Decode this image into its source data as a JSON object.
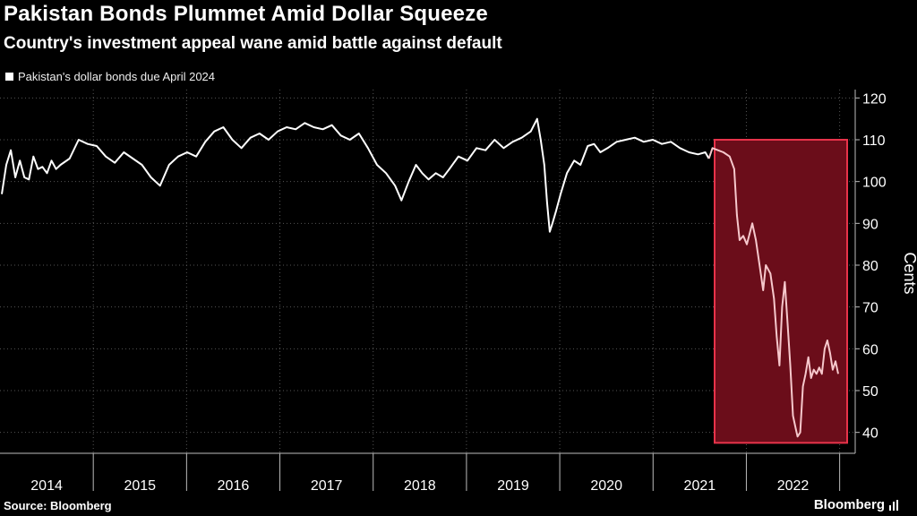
{
  "header": {
    "title": "Pakistan Bonds Plummet Amid Dollar Squeeze",
    "subtitle": "Country's investment appeal wane amid battle against default"
  },
  "footer": {
    "source": "Source: Bloomberg",
    "brand": "Bloomberg"
  },
  "chart_data": {
    "type": "line",
    "title": "Pakistan Bonds Plummet Amid Dollar Squeeze",
    "subtitle": "Country's investment appeal wane amid battle against default",
    "legend": "Pakistan's dollar bonds due April 2024",
    "legend_position": "top-left",
    "ylabel": "Cents",
    "xlabel": "",
    "ylim": [
      35,
      122
    ],
    "yticks": [
      40,
      50,
      60,
      70,
      80,
      90,
      100,
      110,
      120
    ],
    "xlim": [
      2014.0,
      2022.85
    ],
    "years": [
      "2014",
      "2015",
      "2016",
      "2017",
      "2018",
      "2019",
      "2020",
      "2021",
      "2022"
    ],
    "grid": "horizontal and vertical dotted",
    "highlight": {
      "x_start": 2021.82,
      "x_end": 2023.2,
      "y_low": 37.5,
      "y_high": 110,
      "color": "#e8334a"
    },
    "colors": {
      "line": "#ffffff",
      "highlight_line": "#f6c8cc",
      "highlight_fill": "#6b0d1a",
      "highlight_border": "#e8334a"
    },
    "series": [
      {
        "name": "Pakistan's dollar bonds due April 2024",
        "points": [
          [
            2014.0,
            97
          ],
          [
            2014.05,
            104
          ],
          [
            2014.1,
            107.5
          ],
          [
            2014.15,
            101
          ],
          [
            2014.2,
            105
          ],
          [
            2014.25,
            101
          ],
          [
            2014.3,
            100.5
          ],
          [
            2014.35,
            106
          ],
          [
            2014.4,
            103
          ],
          [
            2014.45,
            103.5
          ],
          [
            2014.5,
            102
          ],
          [
            2014.55,
            105
          ],
          [
            2014.6,
            103
          ],
          [
            2014.65,
            104
          ],
          [
            2014.75,
            105.5
          ],
          [
            2014.85,
            110
          ],
          [
            2014.95,
            109
          ],
          [
            2015.05,
            108.5
          ],
          [
            2015.15,
            106
          ],
          [
            2015.25,
            104.5
          ],
          [
            2015.35,
            107
          ],
          [
            2015.45,
            105.5
          ],
          [
            2015.55,
            104
          ],
          [
            2015.65,
            101
          ],
          [
            2015.75,
            99
          ],
          [
            2015.85,
            104
          ],
          [
            2015.95,
            106
          ],
          [
            2016.05,
            107
          ],
          [
            2016.15,
            106
          ],
          [
            2016.25,
            109.5
          ],
          [
            2016.35,
            112
          ],
          [
            2016.45,
            113
          ],
          [
            2016.55,
            110
          ],
          [
            2016.65,
            108
          ],
          [
            2016.75,
            110.5
          ],
          [
            2016.85,
            111.5
          ],
          [
            2016.95,
            110
          ],
          [
            2017.05,
            112
          ],
          [
            2017.15,
            113
          ],
          [
            2017.25,
            112.5
          ],
          [
            2017.35,
            114
          ],
          [
            2017.45,
            113
          ],
          [
            2017.55,
            112.5
          ],
          [
            2017.65,
            113.5
          ],
          [
            2017.75,
            111
          ],
          [
            2017.85,
            110
          ],
          [
            2017.95,
            111.5
          ],
          [
            2018.05,
            108
          ],
          [
            2018.15,
            104
          ],
          [
            2018.25,
            102
          ],
          [
            2018.35,
            99
          ],
          [
            2018.42,
            95.5
          ],
          [
            2018.5,
            100
          ],
          [
            2018.58,
            104
          ],
          [
            2018.65,
            102
          ],
          [
            2018.72,
            100.5
          ],
          [
            2018.8,
            102
          ],
          [
            2018.88,
            101
          ],
          [
            2018.95,
            103
          ],
          [
            2019.05,
            106
          ],
          [
            2019.15,
            105
          ],
          [
            2019.25,
            108
          ],
          [
            2019.35,
            107.5
          ],
          [
            2019.45,
            110
          ],
          [
            2019.55,
            108
          ],
          [
            2019.65,
            109.5
          ],
          [
            2019.75,
            110.5
          ],
          [
            2019.85,
            112
          ],
          [
            2019.92,
            115
          ],
          [
            2019.96,
            110
          ],
          [
            2020.0,
            104
          ],
          [
            2020.03,
            95
          ],
          [
            2020.06,
            88
          ],
          [
            2020.09,
            90
          ],
          [
            2020.13,
            93
          ],
          [
            2020.18,
            97
          ],
          [
            2020.25,
            102
          ],
          [
            2020.33,
            105
          ],
          [
            2020.4,
            104
          ],
          [
            2020.48,
            108.5
          ],
          [
            2020.55,
            109
          ],
          [
            2020.62,
            107
          ],
          [
            2020.7,
            108
          ],
          [
            2020.8,
            109.5
          ],
          [
            2020.9,
            110
          ],
          [
            2021.0,
            110.5
          ],
          [
            2021.1,
            109.5
          ],
          [
            2021.2,
            110
          ],
          [
            2021.3,
            109
          ],
          [
            2021.4,
            109.5
          ],
          [
            2021.5,
            108
          ],
          [
            2021.6,
            107
          ],
          [
            2021.7,
            106.5
          ],
          [
            2021.78,
            107
          ],
          [
            2021.82,
            105.5
          ],
          [
            2021.86,
            108
          ],
          [
            2021.92,
            107.5
          ],
          [
            2021.98,
            107
          ],
          [
            2022.05,
            106
          ],
          [
            2022.1,
            103
          ],
          [
            2022.13,
            92
          ],
          [
            2022.16,
            86
          ],
          [
            2022.2,
            87
          ],
          [
            2022.24,
            85
          ],
          [
            2022.3,
            90
          ],
          [
            2022.34,
            86
          ],
          [
            2022.38,
            80
          ],
          [
            2022.42,
            74
          ],
          [
            2022.45,
            80
          ],
          [
            2022.5,
            78
          ],
          [
            2022.54,
            72
          ],
          [
            2022.57,
            63
          ],
          [
            2022.6,
            56
          ],
          [
            2022.63,
            70
          ],
          [
            2022.66,
            76
          ],
          [
            2022.69,
            66
          ],
          [
            2022.72,
            56
          ],
          [
            2022.75,
            44
          ],
          [
            2022.78,
            41
          ],
          [
            2022.8,
            39
          ],
          [
            2022.83,
            40
          ],
          [
            2022.86,
            51
          ],
          [
            2022.89,
            54
          ],
          [
            2022.92,
            58
          ],
          [
            2022.95,
            53
          ],
          [
            2022.98,
            55
          ],
          [
            2023.01,
            54
          ],
          [
            2023.04,
            55.5
          ],
          [
            2023.07,
            54
          ],
          [
            2023.1,
            60
          ],
          [
            2023.13,
            62
          ],
          [
            2023.16,
            59
          ],
          [
            2023.19,
            55
          ],
          [
            2023.22,
            57
          ],
          [
            2023.25,
            54
          ]
        ]
      }
    ]
  }
}
